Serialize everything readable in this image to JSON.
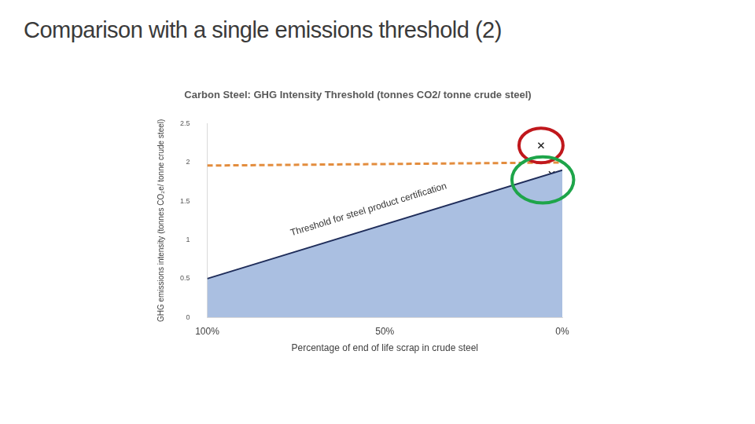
{
  "chart_data": {
    "type": "line",
    "title": "Comparison with a single emissions threshold (2)",
    "subtitle": "Carbon Steel: GHG Intensity Threshold (tonnes CO2/ tonne crude steel)",
    "x_label": "Percentage of end of life scrap in crude steel",
    "y_label": "GHG emissions intensity (tonnes CO₂e/ tonne crude steel)",
    "xlim": [
      100,
      0
    ],
    "xticks": [
      {
        "value": 100,
        "label": "100%"
      },
      {
        "value": 50,
        "label": "50%"
      },
      {
        "value": 0,
        "label": "0%"
      }
    ],
    "ylim": [
      0,
      2.5
    ],
    "yticks": [
      0,
      0.5,
      1,
      1.5,
      2,
      2.5
    ],
    "grid": false,
    "series": [
      {
        "type": "area",
        "color": "#1f2d5a",
        "x": [
          100,
          0
        ],
        "values": [
          0.5,
          1.9
        ]
      },
      {
        "type": "line",
        "line_style": "dashed",
        "color": "#e38d3e",
        "x": [
          100,
          0
        ],
        "values": [
          1.96,
          2.0
        ]
      },
      {
        "type": "scatter",
        "marker": "x",
        "color": "#222222",
        "x": [
          6
        ],
        "values": [
          2.22
        ]
      },
      {
        "type": "scatter",
        "marker": "x",
        "color": "#222222",
        "x": [
          8,
          3
        ],
        "values": [
          1.7,
          1.85
        ]
      }
    ],
    "annotations": [
      {
        "text": "Threshold for steel product certification"
      }
    ]
  }
}
